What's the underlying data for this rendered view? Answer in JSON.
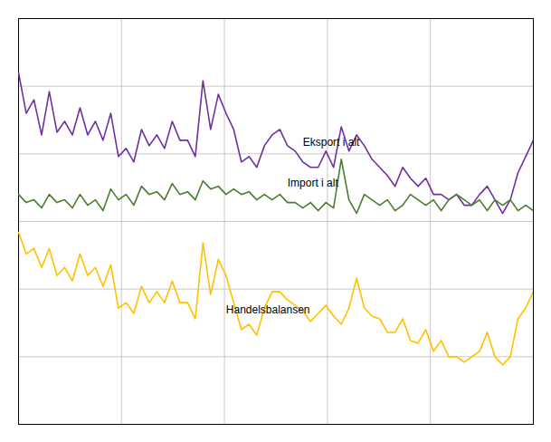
{
  "chart_data": {
    "type": "line",
    "x": [
      0,
      1,
      2,
      3,
      4,
      5,
      6,
      7,
      8,
      9,
      10,
      11,
      12,
      13,
      14,
      15,
      16,
      17,
      18,
      19,
      20,
      21,
      22,
      23,
      24,
      25,
      26,
      27,
      28,
      29,
      30,
      31,
      32,
      33,
      34,
      35,
      36,
      37,
      38,
      39,
      40,
      41,
      42,
      43,
      44,
      45,
      46,
      47,
      48,
      49,
      50,
      51,
      52,
      53,
      54,
      55,
      56,
      57,
      58,
      59,
      60,
      61,
      62,
      63,
      64,
      65,
      66,
      67
    ],
    "series": [
      {
        "name": "Eksport i alt",
        "color": "#7030a0",
        "values": [
          105,
          90,
          95,
          82,
          98,
          83,
          87,
          82,
          92,
          82,
          87,
          80,
          90,
          74,
          77,
          72,
          84,
          78,
          82,
          77,
          87,
          80,
          80,
          74,
          102,
          84,
          97,
          90,
          84,
          72,
          74,
          70,
          78,
          82,
          84,
          78,
          76,
          72,
          70,
          70,
          76,
          70,
          85,
          76,
          82,
          78,
          73,
          70,
          67,
          63,
          70,
          66,
          63,
          66,
          60,
          60,
          58,
          60,
          56,
          56,
          60,
          63,
          58,
          53,
          58,
          68,
          74,
          80
        ]
      },
      {
        "name": "Import i alt",
        "color": "#4a7c2f",
        "values": [
          60,
          57,
          58,
          55,
          60,
          57,
          58,
          55,
          60,
          56,
          58,
          54,
          62,
          58,
          60,
          56,
          63,
          60,
          61,
          58,
          64,
          60,
          61,
          58,
          65,
          62,
          63,
          60,
          62,
          60,
          61,
          58,
          60,
          58,
          60,
          57,
          57,
          55,
          57,
          54,
          57,
          55,
          73,
          58,
          53,
          60,
          58,
          56,
          58,
          54,
          56,
          60,
          58,
          56,
          58,
          54,
          58,
          60,
          58,
          56,
          58,
          54,
          58,
          56,
          58,
          54,
          56,
          54
        ]
      },
      {
        "name": "Handelsbalansen",
        "color": "#ffc000",
        "values": [
          46,
          38,
          40,
          33,
          40,
          30,
          33,
          28,
          38,
          30,
          33,
          26,
          34,
          18,
          20,
          16,
          26,
          20,
          24,
          20,
          28,
          20,
          20,
          14,
          42,
          23,
          36,
          30,
          20,
          10,
          12,
          8,
          18,
          24,
          24,
          21,
          19,
          17,
          13,
          16,
          19,
          15,
          12,
          18,
          29,
          18,
          15,
          14,
          9,
          9,
          14,
          6,
          5,
          10,
          2,
          6,
          0,
          0,
          -2,
          0,
          2,
          9,
          0,
          -3,
          0,
          14,
          18,
          24
        ]
      }
    ],
    "annotations": [
      {
        "text": "Eksport i alt",
        "x": 37,
        "y": 78
      },
      {
        "text": "Import i alt",
        "x": 35,
        "y": 63
      },
      {
        "text": "Handelsbalansen",
        "x": 27,
        "y": 19
      }
    ],
    "xlim": [
      0,
      67
    ],
    "xticks": [
      13.4,
      26.8,
      40.2,
      53.6
    ],
    "ylim": [
      -25,
      125
    ],
    "yticks": [
      -25,
      0,
      25,
      50,
      75,
      100,
      125
    ],
    "grid": true,
    "tick_labels": false
  }
}
